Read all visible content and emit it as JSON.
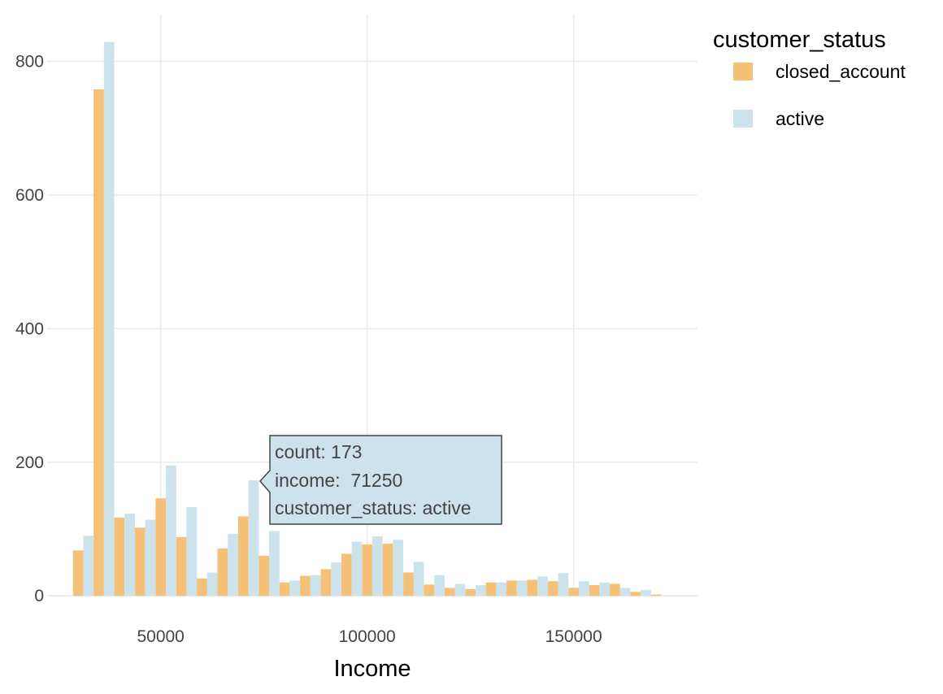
{
  "chart_data": {
    "type": "bar",
    "barmode": "group",
    "xlabel": "Income",
    "ylabel": "",
    "xlim": [
      22500,
      180000
    ],
    "ylim": [
      -35,
      870
    ],
    "x_ticks": [
      50000,
      100000,
      150000
    ],
    "y_ticks": [
      0,
      200,
      400,
      600,
      800
    ],
    "grid": true,
    "legend": {
      "title": "customer_status",
      "placement": "top-right"
    },
    "bin_width": 5000,
    "x": [
      31250,
      36250,
      41250,
      46250,
      51250,
      56250,
      61250,
      66250,
      71250,
      76250,
      81250,
      86250,
      91250,
      96250,
      101250,
      106250,
      111250,
      116250,
      121250,
      126250,
      131250,
      136250,
      141250,
      146250,
      151250,
      156250,
      161250,
      166250,
      171250
    ],
    "series": [
      {
        "name": "closed_account",
        "color": "#F5C077",
        "values": [
          68,
          758,
          117,
          102,
          146,
          88,
          26,
          71,
          119,
          60,
          20,
          30,
          40,
          63,
          77,
          78,
          35,
          17,
          12,
          10,
          20,
          23,
          24,
          22,
          12,
          16,
          18,
          6,
          2
        ]
      },
      {
        "name": "active",
        "color": "#CCE3EC",
        "values": [
          90,
          829,
          123,
          114,
          195,
          133,
          35,
          93,
          173,
          97,
          23,
          31,
          50,
          81,
          89,
          84,
          51,
          31,
          18,
          16,
          20,
          23,
          29,
          34,
          22,
          20,
          12,
          9,
          0
        ]
      }
    ],
    "hover": {
      "lines": [
        "count: 173",
        "income:  71250",
        "customer_status: active"
      ],
      "series": "active",
      "x": 71250,
      "y": 173
    }
  }
}
